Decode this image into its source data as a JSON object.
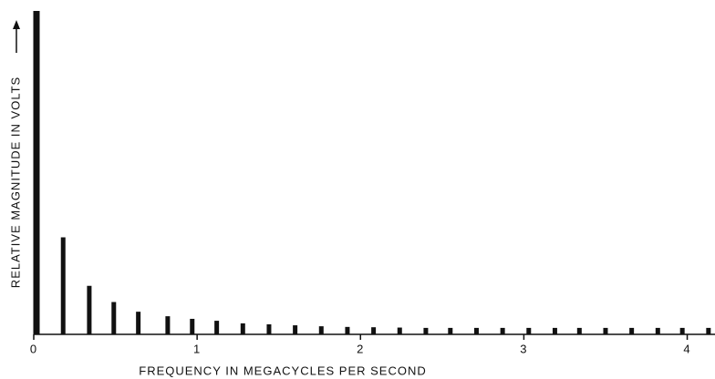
{
  "chart_data": {
    "type": "bar",
    "x_label": "FREQUENCY IN MEGACYCLES PER SECOND",
    "y_label": "RELATIVE MAGNITUDE IN VOLTS",
    "x": [
      0,
      0.18,
      0.34,
      0.49,
      0.64,
      0.82,
      0.97,
      1.12,
      1.28,
      1.44,
      1.6,
      1.76,
      1.92,
      2.08,
      2.24,
      2.4,
      2.55,
      2.71,
      2.87,
      3.03,
      3.19,
      3.34,
      3.5,
      3.66,
      3.82,
      3.97,
      4.13
    ],
    "values": [
      100,
      30,
      15,
      10,
      7,
      5.6,
      4.8,
      4.2,
      3.4,
      3.1,
      2.8,
      2.5,
      2.3,
      2.2,
      2.1,
      2,
      2,
      2,
      2,
      2,
      2,
      2,
      2,
      2,
      2,
      2,
      2
    ],
    "color": "#111111",
    "xlim": [
      0,
      4.17
    ],
    "xticks": [
      0,
      1,
      2,
      3,
      4
    ],
    "ylim": [
      0,
      100
    ]
  }
}
